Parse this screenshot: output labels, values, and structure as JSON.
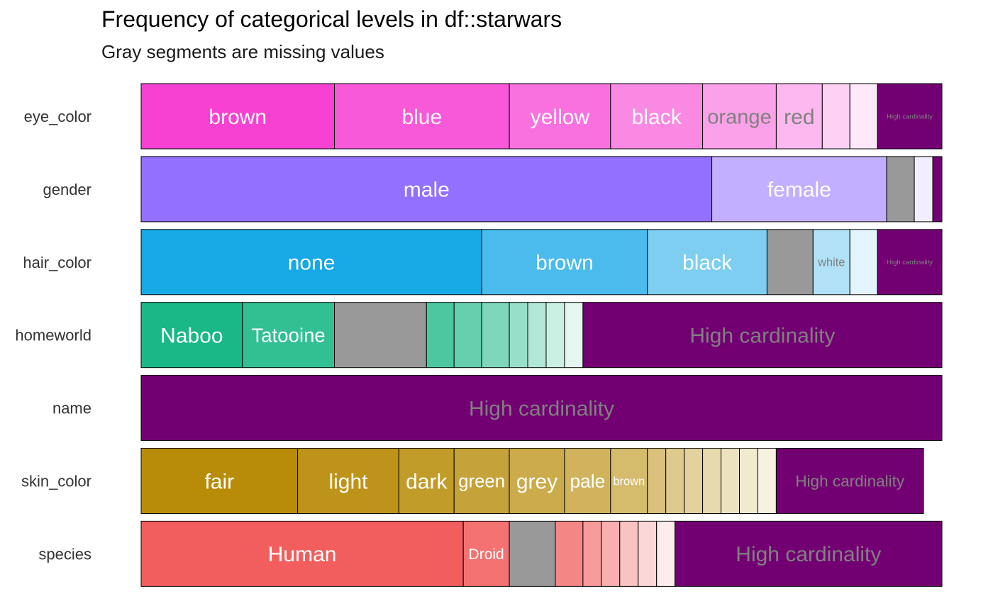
{
  "title": "Frequency of categorical levels in df::starwars",
  "subtitle": "Gray segments are missing values",
  "chart_data": {
    "type": "bar",
    "orientation": "horizontal",
    "stacked": true,
    "normalized": true,
    "xlim": [
      0,
      87
    ],
    "total": 87,
    "colors": {
      "missing": "#999999",
      "high_cardinality": "#730073",
      "eye_color": "#f741d3",
      "gender": "#9370ff",
      "hair_color": "#17a8e6",
      "homeworld": "#19b886",
      "name": "#730073",
      "skin_color": "#b88c08",
      "species": "#f25e5e"
    },
    "rows": [
      {
        "variable": "eye_color",
        "segments": [
          {
            "label": "brown",
            "value": 21
          },
          {
            "label": "blue",
            "value": 19
          },
          {
            "label": "yellow",
            "value": 11
          },
          {
            "label": "black",
            "value": 10
          },
          {
            "label": "orange",
            "value": 8
          },
          {
            "label": "red",
            "value": 5
          },
          {
            "label": "",
            "value": 3
          },
          {
            "label": "",
            "value": 3
          },
          {
            "label": "High cardinality",
            "value": 7,
            "kind": "high_cardinality"
          }
        ]
      },
      {
        "variable": "gender",
        "segments": [
          {
            "label": "male",
            "value": 62
          },
          {
            "label": "female",
            "value": 19
          },
          {
            "label": "",
            "value": 3,
            "kind": "missing"
          },
          {
            "label": "",
            "value": 2
          },
          {
            "label": "",
            "value": 1,
            "kind": "high_cardinality"
          }
        ]
      },
      {
        "variable": "hair_color",
        "segments": [
          {
            "label": "none",
            "value": 37
          },
          {
            "label": "brown",
            "value": 18
          },
          {
            "label": "black",
            "value": 13
          },
          {
            "label": "",
            "value": 5,
            "kind": "missing"
          },
          {
            "label": "white",
            "value": 4
          },
          {
            "label": "",
            "value": 3
          },
          {
            "label": "High cardinality",
            "value": 7,
            "kind": "high_cardinality"
          }
        ]
      },
      {
        "variable": "homeworld",
        "segments": [
          {
            "label": "Naboo",
            "value": 11
          },
          {
            "label": "Tatooine",
            "value": 10
          },
          {
            "label": "",
            "value": 10,
            "kind": "missing"
          },
          {
            "label": "",
            "value": 3
          },
          {
            "label": "",
            "value": 3
          },
          {
            "label": "",
            "value": 3
          },
          {
            "label": "",
            "value": 2
          },
          {
            "label": "",
            "value": 2
          },
          {
            "label": "",
            "value": 2
          },
          {
            "label": "",
            "value": 2
          },
          {
            "label": "High cardinality",
            "value": 39,
            "kind": "high_cardinality"
          }
        ]
      },
      {
        "variable": "name",
        "segments": [
          {
            "label": "High cardinality",
            "value": 87,
            "kind": "high_cardinality"
          }
        ]
      },
      {
        "variable": "skin_color",
        "segments": [
          {
            "label": "fair",
            "value": 17
          },
          {
            "label": "light",
            "value": 11
          },
          {
            "label": "dark",
            "value": 6
          },
          {
            "label": "green",
            "value": 6
          },
          {
            "label": "grey",
            "value": 6
          },
          {
            "label": "pale",
            "value": 5
          },
          {
            "label": "brown",
            "value": 4
          },
          {
            "label": "",
            "value": 2
          },
          {
            "label": "",
            "value": 2
          },
          {
            "label": "",
            "value": 2
          },
          {
            "label": "",
            "value": 2
          },
          {
            "label": "",
            "value": 2
          },
          {
            "label": "",
            "value": 2
          },
          {
            "label": "",
            "value": 2
          },
          {
            "label": "High cardinality",
            "value": 16,
            "kind": "high_cardinality"
          }
        ]
      },
      {
        "variable": "species",
        "segments": [
          {
            "label": "Human",
            "value": 35
          },
          {
            "label": "Droid",
            "value": 5
          },
          {
            "label": "",
            "value": 5,
            "kind": "missing"
          },
          {
            "label": "",
            "value": 3
          },
          {
            "label": "",
            "value": 2
          },
          {
            "label": "",
            "value": 2
          },
          {
            "label": "",
            "value": 2
          },
          {
            "label": "",
            "value": 2
          },
          {
            "label": "",
            "value": 2
          },
          {
            "label": "High cardinality",
            "value": 29,
            "kind": "high_cardinality"
          }
        ]
      }
    ]
  }
}
